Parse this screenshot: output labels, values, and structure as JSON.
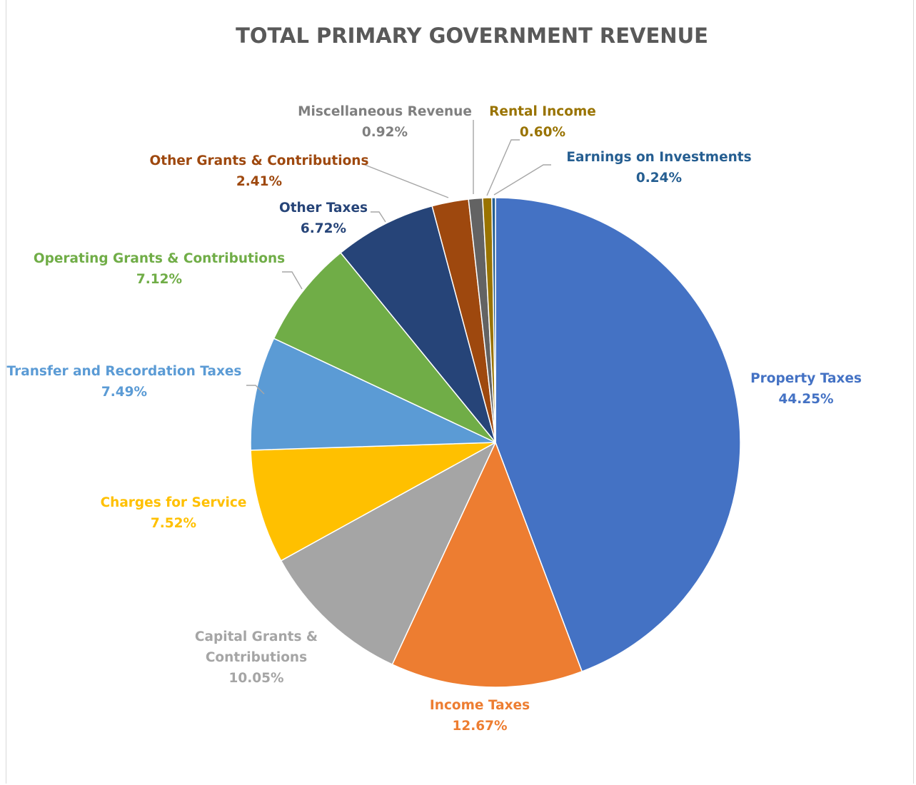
{
  "chart_data": {
    "type": "pie",
    "title": "TOTAL PRIMARY GOVERNMENT REVENUE",
    "start_angle_deg": 0,
    "direction": "clockwise",
    "legend": "none",
    "slices": [
      {
        "name": "Property Taxes",
        "label_lines": [
          "Property Taxes"
        ],
        "value": 44.25,
        "value_text": "44.25%",
        "color": "#4472C4"
      },
      {
        "name": "Income Taxes",
        "label_lines": [
          "Income Taxes"
        ],
        "value": 12.67,
        "value_text": "12.67%",
        "color": "#ED7D31"
      },
      {
        "name": "Capital Grants & Contributions",
        "label_lines": [
          "Capital Grants &",
          "Contributions"
        ],
        "value": 10.05,
        "value_text": "10.05%",
        "color": "#A5A5A5"
      },
      {
        "name": "Charges for Service",
        "label_lines": [
          "Charges for Service"
        ],
        "value": 7.52,
        "value_text": "7.52%",
        "color": "#FFC000"
      },
      {
        "name": "Transfer and Recordation Taxes",
        "label_lines": [
          "Transfer and Recordation Taxes"
        ],
        "value": 7.49,
        "value_text": "7.49%",
        "color": "#5B9BD5"
      },
      {
        "name": "Operating Grants & Contributions",
        "label_lines": [
          "Operating Grants & Contributions"
        ],
        "value": 7.12,
        "value_text": "7.12%",
        "color": "#70AD47"
      },
      {
        "name": "Other Taxes",
        "label_lines": [
          "Other Taxes"
        ],
        "value": 6.72,
        "value_text": "6.72%",
        "color": "#264478"
      },
      {
        "name": "Other Grants & Contributions",
        "label_lines": [
          "Other Grants & Contributions"
        ],
        "value": 2.41,
        "value_text": "2.41%",
        "color": "#9E480E"
      },
      {
        "name": "Miscellaneous Revenue",
        "label_lines": [
          "Miscellaneous Revenue"
        ],
        "value": 0.92,
        "value_text": "0.92%",
        "color": "#636363"
      },
      {
        "name": "Rental Income",
        "label_lines": [
          "Rental Income"
        ],
        "value": 0.6,
        "value_text": "0.60%",
        "color": "#997300"
      },
      {
        "name": "Earnings on Investments",
        "label_lines": [
          "Earnings on Investments"
        ],
        "value": 0.24,
        "value_text": "0.24%",
        "color": "#255E91"
      }
    ],
    "label_colors": {
      "Property Taxes": "#4472C4",
      "Income Taxes": "#ED7D31",
      "Capital Grants & Contributions": "#A5A5A5",
      "Charges for Service": "#FFC000",
      "Transfer and Recordation Taxes": "#5B9BD5",
      "Operating Grants & Contributions": "#70AD47",
      "Other Taxes": "#264478",
      "Other Grants & Contributions": "#9E480E",
      "Miscellaneous Revenue": "#7F7F7F",
      "Rental Income": "#997300",
      "Earnings on Investments": "#255E91"
    }
  }
}
